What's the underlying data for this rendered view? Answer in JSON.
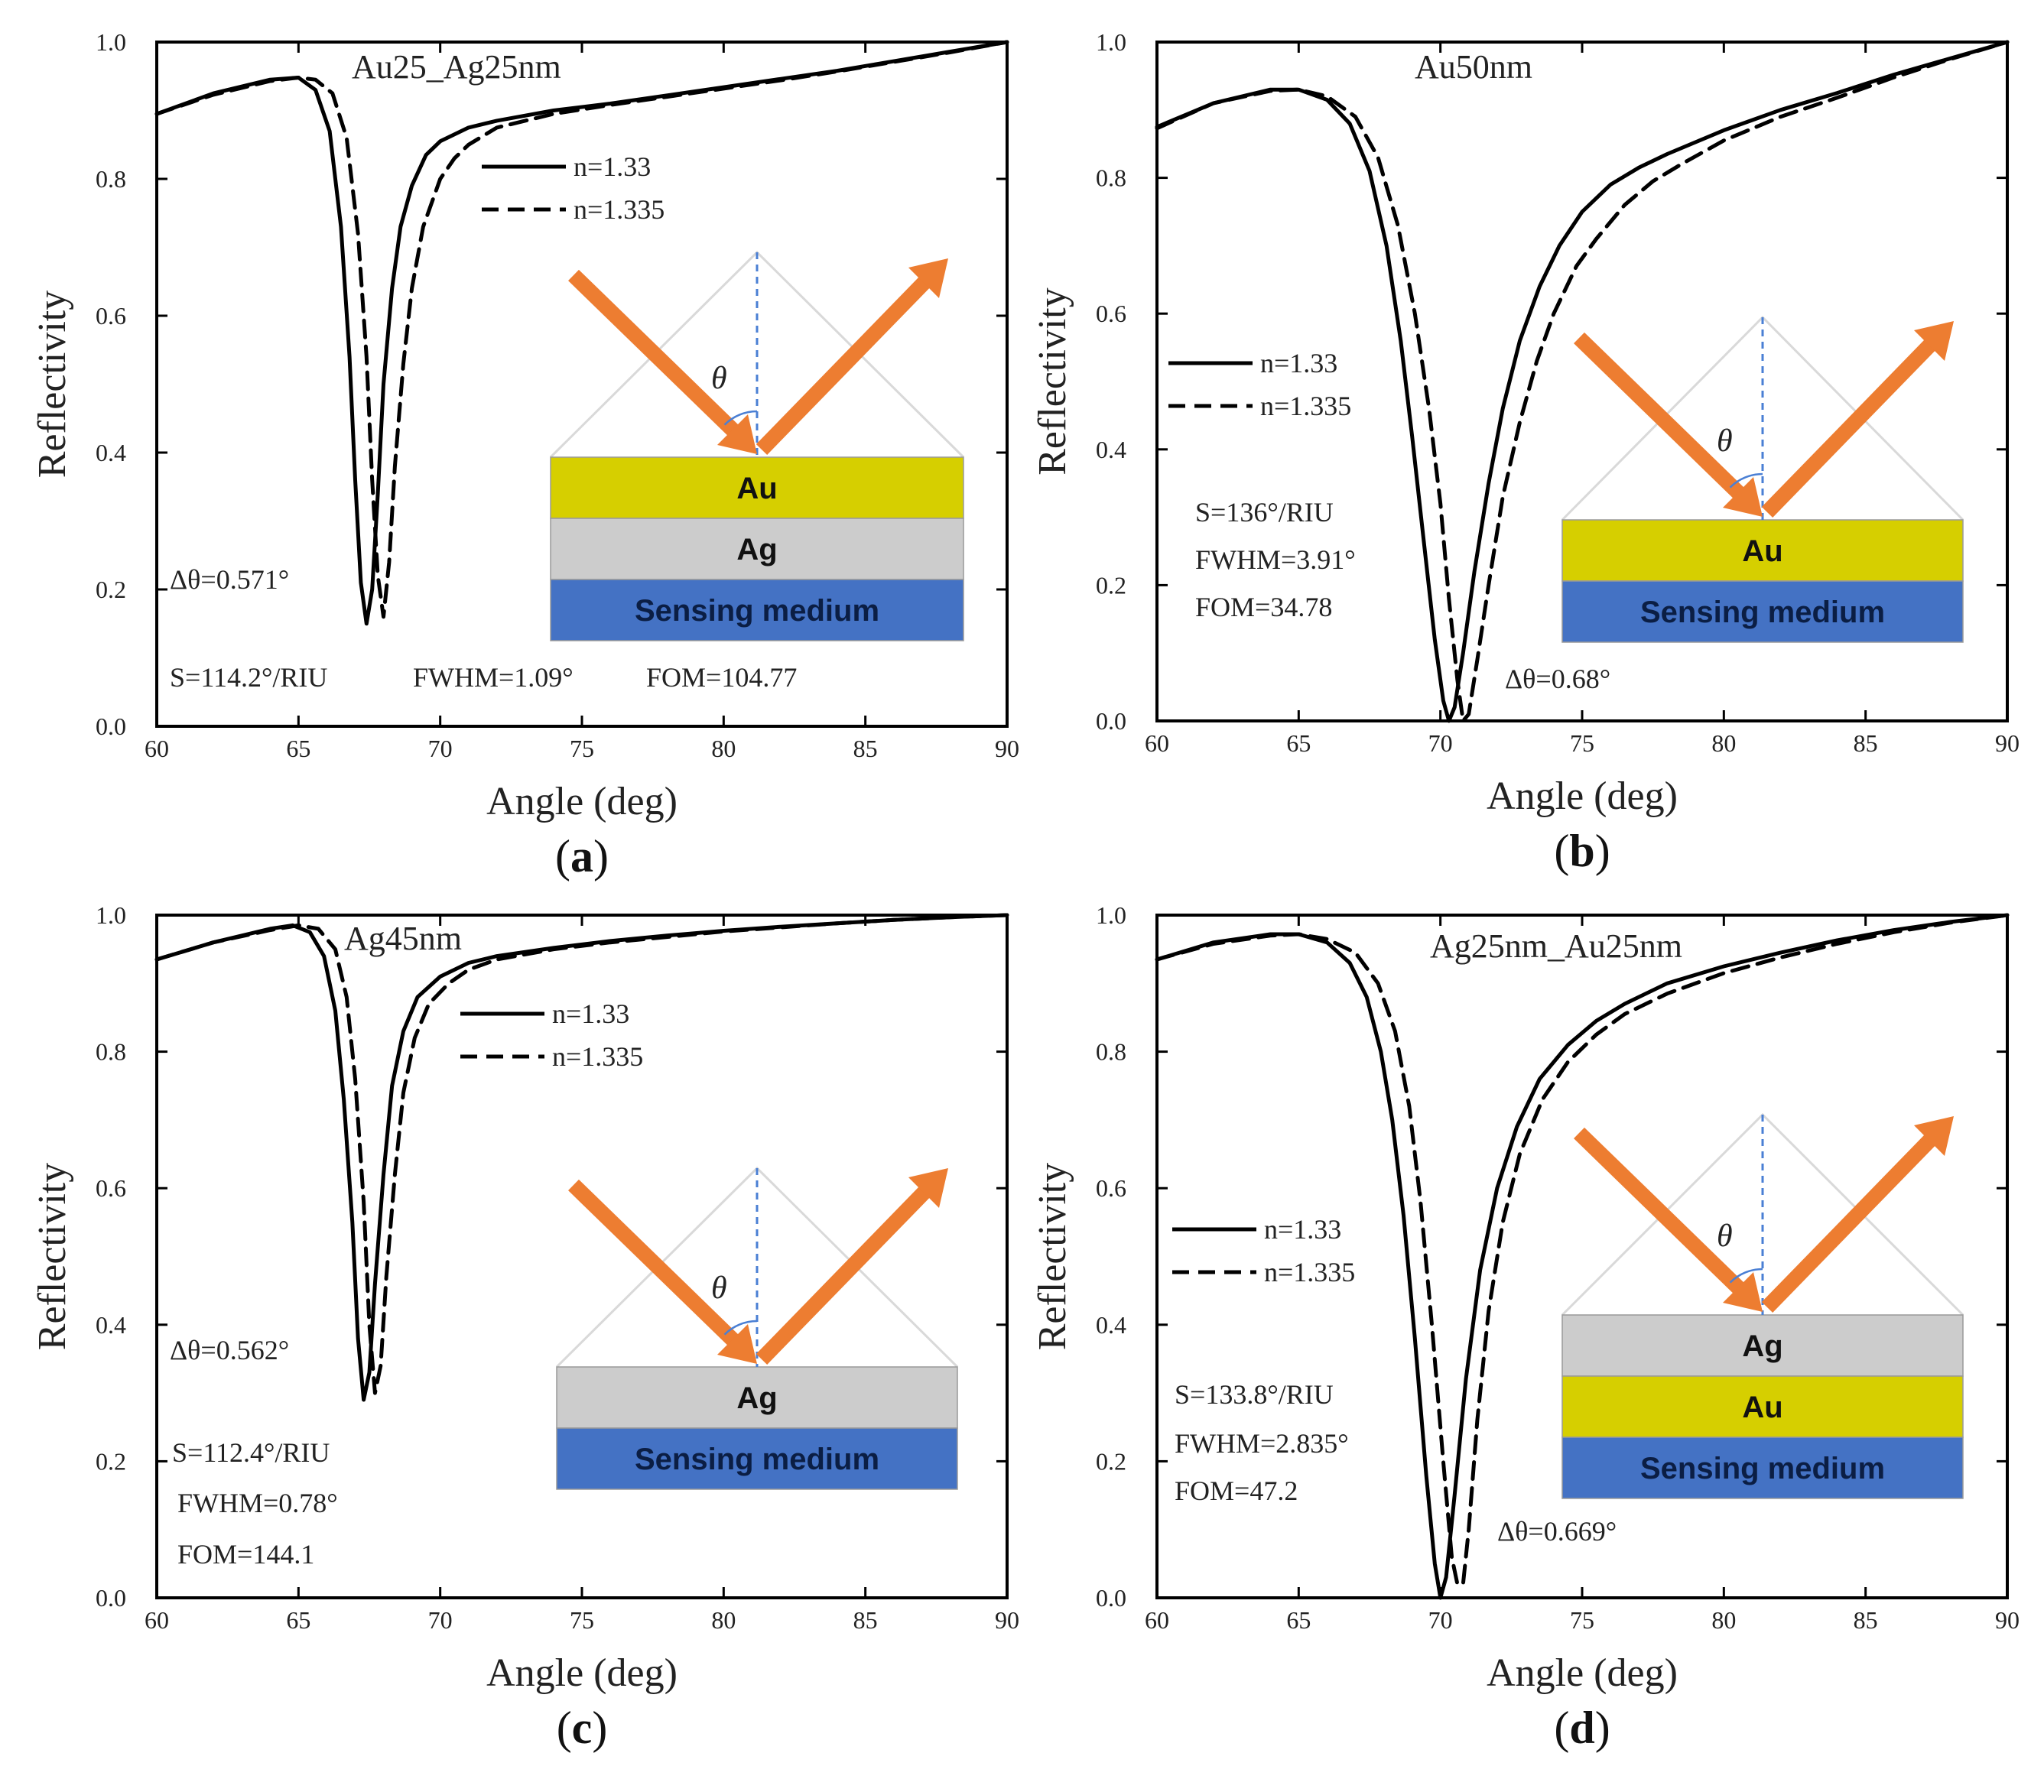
{
  "figure": {
    "colors": {
      "au": "#d6cf00",
      "ag": "#cccccc",
      "medium": "#4472c4",
      "arrow": "#ed7d31",
      "normal": "#4a7fd4",
      "curve": "#000000"
    },
    "theta_symbol": "θ"
  },
  "chart_data": [
    {
      "type": "line",
      "panel_label": "a",
      "title": "Au25_Ag25nm",
      "xlabel": "Angle (deg)",
      "ylabel": "Reflectivity",
      "xlim": [
        60,
        90
      ],
      "ylim": [
        0,
        1
      ],
      "xticks": [
        "60",
        "65",
        "70",
        "75",
        "80",
        "85",
        "90"
      ],
      "yticks": [
        "0.0",
        "0.2",
        "0.4",
        "0.6",
        "0.8",
        "1.0"
      ],
      "series": [
        {
          "name": "n=1.33",
          "style": "solid",
          "x": [
            60,
            62,
            64,
            65,
            65.6,
            66.1,
            66.5,
            66.8,
            67.0,
            67.2,
            67.4,
            67.6,
            67.8,
            68.0,
            68.3,
            68.6,
            69.0,
            69.5,
            70,
            71,
            72,
            74,
            76,
            78,
            80,
            82,
            84,
            86,
            88,
            90
          ],
          "y": [
            0.895,
            0.925,
            0.945,
            0.948,
            0.93,
            0.87,
            0.73,
            0.54,
            0.36,
            0.21,
            0.15,
            0.2,
            0.34,
            0.5,
            0.64,
            0.73,
            0.79,
            0.835,
            0.855,
            0.875,
            0.885,
            0.9,
            0.91,
            0.922,
            0.934,
            0.946,
            0.958,
            0.972,
            0.986,
            1.0
          ]
        },
        {
          "name": "n=1.335",
          "style": "dashed",
          "x": [
            60,
            62,
            64,
            65,
            65.6,
            66.2,
            66.7,
            67.1,
            67.4,
            67.6,
            67.8,
            68.0,
            68.2,
            68.4,
            68.7,
            69.0,
            69.4,
            70,
            70.5,
            71,
            72,
            74,
            76,
            78,
            80,
            82,
            84,
            86,
            88,
            90
          ],
          "y": [
            0.895,
            0.923,
            0.943,
            0.948,
            0.945,
            0.925,
            0.86,
            0.72,
            0.54,
            0.36,
            0.22,
            0.16,
            0.24,
            0.38,
            0.53,
            0.64,
            0.73,
            0.8,
            0.83,
            0.85,
            0.875,
            0.895,
            0.908,
            0.92,
            0.932,
            0.944,
            0.957,
            0.971,
            0.985,
            1.0
          ]
        }
      ],
      "annotations": {
        "delta": "Δθ=0.571°",
        "s": "S=114.2°/RIU",
        "fwhm": "FWHM=1.09°",
        "fom": "FOM=104.77"
      },
      "layers": [
        "Au",
        "Ag",
        "Sensing medium"
      ]
    },
    {
      "type": "line",
      "panel_label": "b",
      "title": "Au50nm",
      "xlabel": "Angle (deg)",
      "ylabel": "Reflectivity",
      "xlim": [
        60,
        90
      ],
      "ylim": [
        0,
        1
      ],
      "xticks": [
        "60",
        "65",
        "70",
        "75",
        "80",
        "85",
        "90"
      ],
      "yticks": [
        "0.0",
        "0.2",
        "0.4",
        "0.6",
        "0.8",
        "1.0"
      ],
      "series": [
        {
          "name": "n=1.33",
          "style": "solid",
          "x": [
            60,
            62,
            64,
            65,
            66,
            66.8,
            67.5,
            68.1,
            68.6,
            69.0,
            69.4,
            69.8,
            70.1,
            70.3,
            70.5,
            70.8,
            71.2,
            71.7,
            72.2,
            72.8,
            73.5,
            74.2,
            75,
            76,
            77,
            78,
            80,
            82,
            84,
            86,
            88,
            90
          ],
          "y": [
            0.875,
            0.91,
            0.93,
            0.93,
            0.915,
            0.88,
            0.81,
            0.7,
            0.56,
            0.42,
            0.27,
            0.12,
            0.03,
            0.0,
            0.02,
            0.1,
            0.22,
            0.35,
            0.46,
            0.56,
            0.64,
            0.7,
            0.75,
            0.79,
            0.815,
            0.835,
            0.87,
            0.9,
            0.925,
            0.952,
            0.976,
            1.0
          ]
        },
        {
          "name": "n=1.335",
          "style": "dashed",
          "x": [
            60,
            62,
            64,
            65,
            66,
            67,
            67.8,
            68.5,
            69.1,
            69.6,
            70.0,
            70.3,
            70.6,
            70.8,
            71.0,
            71.3,
            71.7,
            72.2,
            72.8,
            73.4,
            74.0,
            74.8,
            75.5,
            76.5,
            77.5,
            78.5,
            80,
            82,
            84,
            86,
            88,
            90
          ],
          "y": [
            0.873,
            0.91,
            0.928,
            0.93,
            0.92,
            0.89,
            0.83,
            0.73,
            0.6,
            0.46,
            0.32,
            0.18,
            0.06,
            0.0,
            0.01,
            0.09,
            0.2,
            0.33,
            0.44,
            0.53,
            0.6,
            0.67,
            0.71,
            0.76,
            0.795,
            0.82,
            0.855,
            0.89,
            0.918,
            0.948,
            0.975,
            1.0
          ]
        }
      ],
      "annotations": {
        "delta": "Δθ=0.68°",
        "s": "S=136°/RIU",
        "fwhm": "FWHM=3.91°",
        "fom": "FOM=34.78"
      },
      "layers": [
        "Au",
        "Sensing medium"
      ]
    },
    {
      "type": "line",
      "panel_label": "c",
      "title": "Ag45nm",
      "xlabel": "Angle (deg)",
      "ylabel": "Reflectivity",
      "xlim": [
        60,
        90
      ],
      "ylim": [
        0,
        1
      ],
      "xticks": [
        "60",
        "65",
        "70",
        "75",
        "80",
        "85",
        "90"
      ],
      "yticks": [
        "0.0",
        "0.2",
        "0.4",
        "0.6",
        "0.8",
        "1.0"
      ],
      "series": [
        {
          "name": "n=1.33",
          "style": "solid",
          "x": [
            60,
            62,
            64,
            64.8,
            65.4,
            65.9,
            66.3,
            66.6,
            66.9,
            67.1,
            67.3,
            67.5,
            67.7,
            68.0,
            68.3,
            68.7,
            69.2,
            70,
            71,
            72,
            74,
            76,
            78,
            80,
            82,
            84,
            86,
            88,
            90
          ],
          "y": [
            0.935,
            0.96,
            0.98,
            0.985,
            0.975,
            0.94,
            0.86,
            0.73,
            0.55,
            0.38,
            0.29,
            0.33,
            0.46,
            0.62,
            0.75,
            0.83,
            0.88,
            0.91,
            0.93,
            0.94,
            0.952,
            0.962,
            0.97,
            0.977,
            0.983,
            0.988,
            0.993,
            0.997,
            1.0
          ]
        },
        {
          "name": "n=1.335",
          "style": "dashed",
          "x": [
            60,
            62,
            64,
            65,
            65.7,
            66.3,
            66.7,
            67.0,
            67.3,
            67.5,
            67.7,
            67.9,
            68.1,
            68.4,
            68.7,
            69.1,
            69.6,
            70.3,
            71,
            72,
            74,
            76,
            78,
            80,
            82,
            84,
            86,
            88,
            90
          ],
          "y": [
            0.935,
            0.96,
            0.978,
            0.985,
            0.98,
            0.95,
            0.88,
            0.76,
            0.58,
            0.4,
            0.3,
            0.34,
            0.47,
            0.62,
            0.74,
            0.82,
            0.87,
            0.9,
            0.92,
            0.935,
            0.95,
            0.96,
            0.968,
            0.976,
            0.982,
            0.988,
            0.993,
            0.997,
            1.0
          ]
        }
      ],
      "annotations": {
        "delta": "Δθ=0.562°",
        "s": "S=112.4°/RIU",
        "fwhm": "FWHM=0.78°",
        "fom": "FOM=144.1"
      },
      "layers": [
        "Ag",
        "Sensing medium"
      ]
    },
    {
      "type": "line",
      "panel_label": "d",
      "title": "Ag25nm_Au25nm",
      "xlabel": "Angle (deg)",
      "ylabel": "Reflectivity",
      "xlim": [
        60,
        90
      ],
      "ylim": [
        0,
        1
      ],
      "xticks": [
        "60",
        "65",
        "70",
        "75",
        "80",
        "85",
        "90"
      ],
      "yticks": [
        "0.0",
        "0.2",
        "0.4",
        "0.6",
        "0.8",
        "1.0"
      ],
      "series": [
        {
          "name": "n=1.33",
          "style": "solid",
          "x": [
            60,
            62,
            64,
            65,
            66,
            66.8,
            67.4,
            67.9,
            68.3,
            68.7,
            69.1,
            69.5,
            69.8,
            70.0,
            70.2,
            70.5,
            70.9,
            71.4,
            72,
            72.7,
            73.5,
            74.5,
            75.5,
            76.5,
            78,
            80,
            82,
            84,
            86,
            88,
            90
          ],
          "y": [
            0.935,
            0.96,
            0.972,
            0.972,
            0.96,
            0.93,
            0.88,
            0.8,
            0.7,
            0.56,
            0.38,
            0.18,
            0.05,
            0.0,
            0.03,
            0.15,
            0.32,
            0.48,
            0.6,
            0.69,
            0.76,
            0.81,
            0.845,
            0.87,
            0.9,
            0.925,
            0.945,
            0.963,
            0.978,
            0.99,
            1.0
          ]
        },
        {
          "name": "n=1.335",
          "style": "dashed",
          "x": [
            60,
            62,
            64,
            65,
            66,
            67,
            67.8,
            68.4,
            68.9,
            69.3,
            69.7,
            70.1,
            70.4,
            70.6,
            70.8,
            71.0,
            71.3,
            71.7,
            72.2,
            72.8,
            73.6,
            74.5,
            75.5,
            76.5,
            78,
            80,
            82,
            84,
            86,
            88,
            90
          ],
          "y": [
            0.935,
            0.958,
            0.97,
            0.972,
            0.965,
            0.945,
            0.9,
            0.83,
            0.72,
            0.58,
            0.4,
            0.2,
            0.06,
            0.02,
            0.02,
            0.1,
            0.26,
            0.42,
            0.55,
            0.65,
            0.73,
            0.785,
            0.825,
            0.855,
            0.885,
            0.915,
            0.938,
            0.958,
            0.975,
            0.989,
            1.0
          ]
        }
      ],
      "annotations": {
        "delta": "Δθ=0.669°",
        "s": "S=133.8°/RIU",
        "fwhm": "FWHM=2.835°",
        "fom": "FOM=47.2"
      },
      "layers": [
        "Ag",
        "Au",
        "Sensing medium"
      ]
    }
  ]
}
